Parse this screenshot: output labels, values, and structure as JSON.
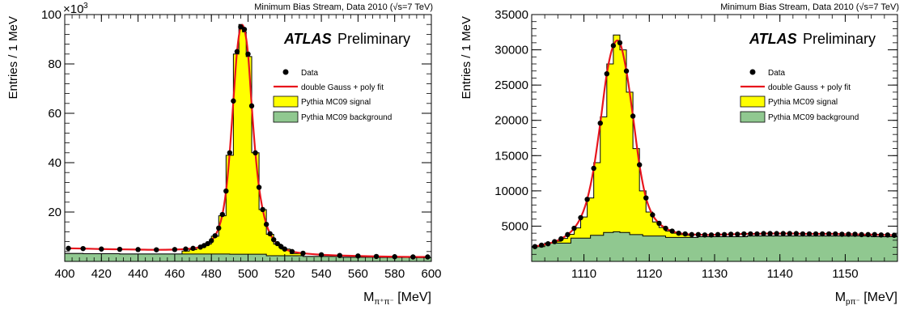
{
  "chart_data": [
    {
      "type": "line",
      "stream_label": "Minimum Bias Stream, Data 2010 (√s=7 TeV)",
      "atlas": "ATLAS",
      "preliminary": "Preliminary",
      "ylabel": "Entries / 1 MeV",
      "y_multiplier": "×10",
      "y_exponent": "3",
      "xlabel_main": "M",
      "xlabel_sub": "π⁺π⁻",
      "xlabel_unit": "[MeV]",
      "xlim": [
        400,
        600
      ],
      "ylim": [
        0,
        100
      ],
      "xticks": [
        400,
        420,
        440,
        460,
        480,
        500,
        520,
        540,
        560,
        580,
        600
      ],
      "yticks": [
        20,
        40,
        60,
        80,
        100
      ],
      "legend": {
        "data": "Data",
        "fit": "double Gauss + poly fit",
        "signal": "Pythia MC09 signal",
        "background": "Pythia MC09 background"
      },
      "colors": {
        "fit": "#e8141c",
        "signal": "#ffff00",
        "background": "#90c890",
        "data": "#000000"
      },
      "data_points": {
        "x": [
          402,
          410,
          420,
          430,
          440,
          450,
          460,
          466,
          470,
          474,
          476,
          478,
          480,
          482,
          484,
          486,
          488,
          490,
          492,
          494,
          496,
          498,
          500,
          502,
          504,
          506,
          508,
          510,
          512,
          514,
          516,
          518,
          520,
          524,
          530,
          540,
          550,
          560,
          570,
          580,
          590,
          598
        ],
        "y": [
          5.3,
          5.2,
          5.0,
          4.9,
          4.8,
          4.7,
          4.8,
          5.0,
          5.3,
          5.8,
          6.4,
          7.2,
          8.4,
          10.4,
          13.5,
          19,
          28.5,
          44,
          65,
          85,
          95,
          94,
          84,
          63,
          44,
          30,
          21,
          15,
          11.2,
          8.8,
          7.2,
          6.0,
          5.0,
          4.0,
          3.3,
          2.7,
          2.4,
          2.2,
          2.0,
          1.9,
          1.8,
          1.8
        ]
      },
      "signal_hist": {
        "x": [
          466,
          470,
          474,
          478,
          482,
          486,
          490,
          494,
          496,
          498,
          500,
          504,
          508,
          512,
          516,
          520,
          526
        ],
        "y": [
          4.2,
          4.8,
          5.6,
          7.0,
          10.2,
          18.5,
          43,
          84,
          96,
          93,
          83,
          44,
          21,
          11,
          7.0,
          5.0,
          3.2
        ]
      },
      "background_hist": {
        "x": [
          400,
          420,
          440,
          460,
          480,
          500,
          520,
          540,
          560,
          580,
          600
        ],
        "y": [
          3.2,
          3.1,
          3.0,
          3.0,
          3.0,
          2.9,
          2.3,
          2.0,
          1.7,
          1.6,
          1.5
        ]
      }
    },
    {
      "type": "line",
      "stream_label": "Minimum Bias Stream, Data 2010 (√s=7 TeV)",
      "atlas": "ATLAS",
      "preliminary": "Preliminary",
      "ylabel": "Entries / 1 MeV",
      "xlabel_main": "M",
      "xlabel_sub": "pπ⁻",
      "xlabel_unit": "[MeV]",
      "xlim": [
        1102,
        1158
      ],
      "ylim": [
        0,
        35000
      ],
      "xticks": [
        1110,
        1120,
        1130,
        1140,
        1150
      ],
      "yticks": [
        5000,
        10000,
        15000,
        20000,
        25000,
        30000,
        35000
      ],
      "legend": {
        "data": "Data",
        "fit": "double Gauss + poly fit",
        "signal": "Pythia MC09 signal",
        "background": "Pythia MC09 background"
      },
      "colors": {
        "fit": "#e8141c",
        "signal": "#ffff00",
        "background": "#90c890",
        "data": "#000000"
      },
      "data_points": {
        "x": [
          1102.5,
          1103.5,
          1104.5,
          1105.5,
          1106.5,
          1107.5,
          1108.5,
          1109.5,
          1110.5,
          1111.5,
          1112.5,
          1113.5,
          1114.5,
          1115.5,
          1116.5,
          1117.5,
          1118.5,
          1119.5,
          1120.5,
          1121.5,
          1122.5,
          1123.5,
          1124.5,
          1125.5,
          1126.5,
          1127.5,
          1128.5,
          1129.5,
          1130.5,
          1131.5,
          1132.5,
          1133.5,
          1134.5,
          1135.5,
          1136.5,
          1137.5,
          1138.5,
          1139.5,
          1140.5,
          1141.5,
          1142.5,
          1143.5,
          1144.5,
          1145.5,
          1146.5,
          1147.5,
          1148.5,
          1149.5,
          1150.5,
          1151.5,
          1152.5,
          1153.5,
          1154.5,
          1155.5,
          1156.5,
          1157.5
        ],
        "y": [
          2100,
          2300,
          2500,
          2800,
          3200,
          3800,
          4700,
          6200,
          8800,
          13200,
          19600,
          26600,
          30600,
          31000,
          27000,
          20600,
          13700,
          9000,
          6600,
          5400,
          4700,
          4300,
          4000,
          3900,
          3800,
          3800,
          3750,
          3750,
          3800,
          3800,
          3850,
          3850,
          3900,
          3900,
          3900,
          3950,
          3950,
          3950,
          3950,
          3950,
          3950,
          3900,
          3900,
          3900,
          3900,
          3900,
          3900,
          3850,
          3850,
          3850,
          3800,
          3800,
          3800,
          3750,
          3750,
          3700
        ]
      },
      "signal_hist": {
        "x": [
          1103,
          1104,
          1105,
          1106,
          1107,
          1108,
          1109,
          1110,
          1111,
          1112,
          1113,
          1114,
          1115,
          1116,
          1117,
          1118,
          1119,
          1120,
          1121,
          1122,
          1123,
          1124,
          1125,
          1126
        ],
        "y": [
          2150,
          2350,
          2550,
          2850,
          3250,
          3850,
          4750,
          6300,
          9000,
          14000,
          20500,
          28000,
          32100,
          30000,
          24000,
          16000,
          10000,
          7000,
          5600,
          4800,
          4300,
          4000,
          3800,
          3700
        ]
      },
      "background_hist": {
        "x": [
          1102,
          1106,
          1110,
          1112,
          1114,
          1115,
          1116,
          1118,
          1120,
          1125,
          1130,
          1140,
          1150,
          1158
        ],
        "y": [
          2100,
          2600,
          3300,
          3700,
          4100,
          4200,
          4100,
          3800,
          3600,
          3400,
          3500,
          3600,
          3600,
          3500
        ]
      }
    }
  ]
}
